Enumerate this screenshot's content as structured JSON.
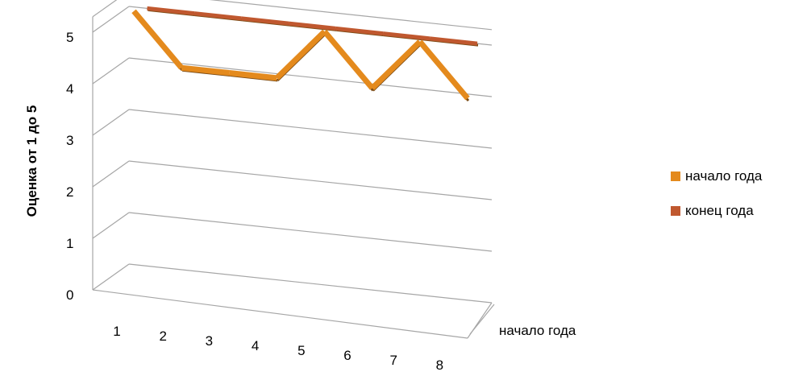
{
  "chart_data": {
    "type": "line",
    "style": "3d-ribbon",
    "categories": [
      "1",
      "2",
      "3",
      "4",
      "5",
      "6",
      "7",
      "8"
    ],
    "series": [
      {
        "name": "начало года",
        "color": "#E48A1D",
        "values": [
          5,
          4,
          4,
          4,
          5,
          4,
          5,
          4
        ]
      },
      {
        "name": "конец года",
        "color": "#C0582F",
        "values": [
          5,
          5,
          5,
          5,
          5,
          5,
          5,
          5
        ]
      }
    ],
    "ylabel": "Оценка от 1 до 5",
    "ylim": [
      0,
      5
    ],
    "yticks": [
      "0",
      "1",
      "2",
      "3",
      "4",
      "5"
    ],
    "depth_label": "начало года",
    "grid": true,
    "legend": "right"
  }
}
